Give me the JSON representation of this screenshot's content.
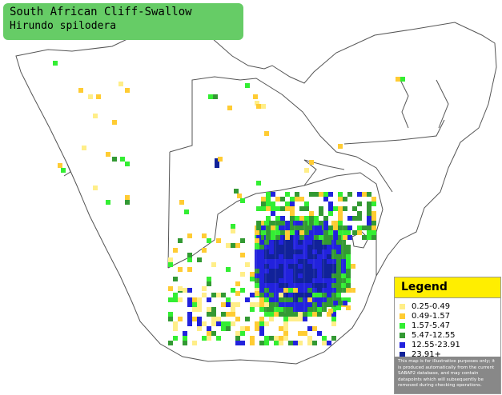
{
  "title": {
    "common_name": "South African Cliff-Swallow",
    "scientific_name": "Hirundo spilodera"
  },
  "legend": {
    "heading": "Legend",
    "items": [
      {
        "label": "0.25-0.49",
        "color": "#ffee88"
      },
      {
        "label": "0.49-1.57",
        "color": "#ffcc33"
      },
      {
        "label": "1.57-5.47",
        "color": "#33ee33"
      },
      {
        "label": "5.47-12.55",
        "color": "#339933"
      },
      {
        "label": "12.55-23.91",
        "color": "#2222dd"
      },
      {
        "label": "23.91+",
        "color": "#112299"
      }
    ],
    "disclaimer": "This map is for illustrative purposes only; it is produced automatically from the current SABAP2 database, and may contain datapoints which will subsequently be removed during checking operations."
  },
  "map": {
    "colors": {
      "outline": "#555555",
      "grid": "#dddddd"
    }
  }
}
